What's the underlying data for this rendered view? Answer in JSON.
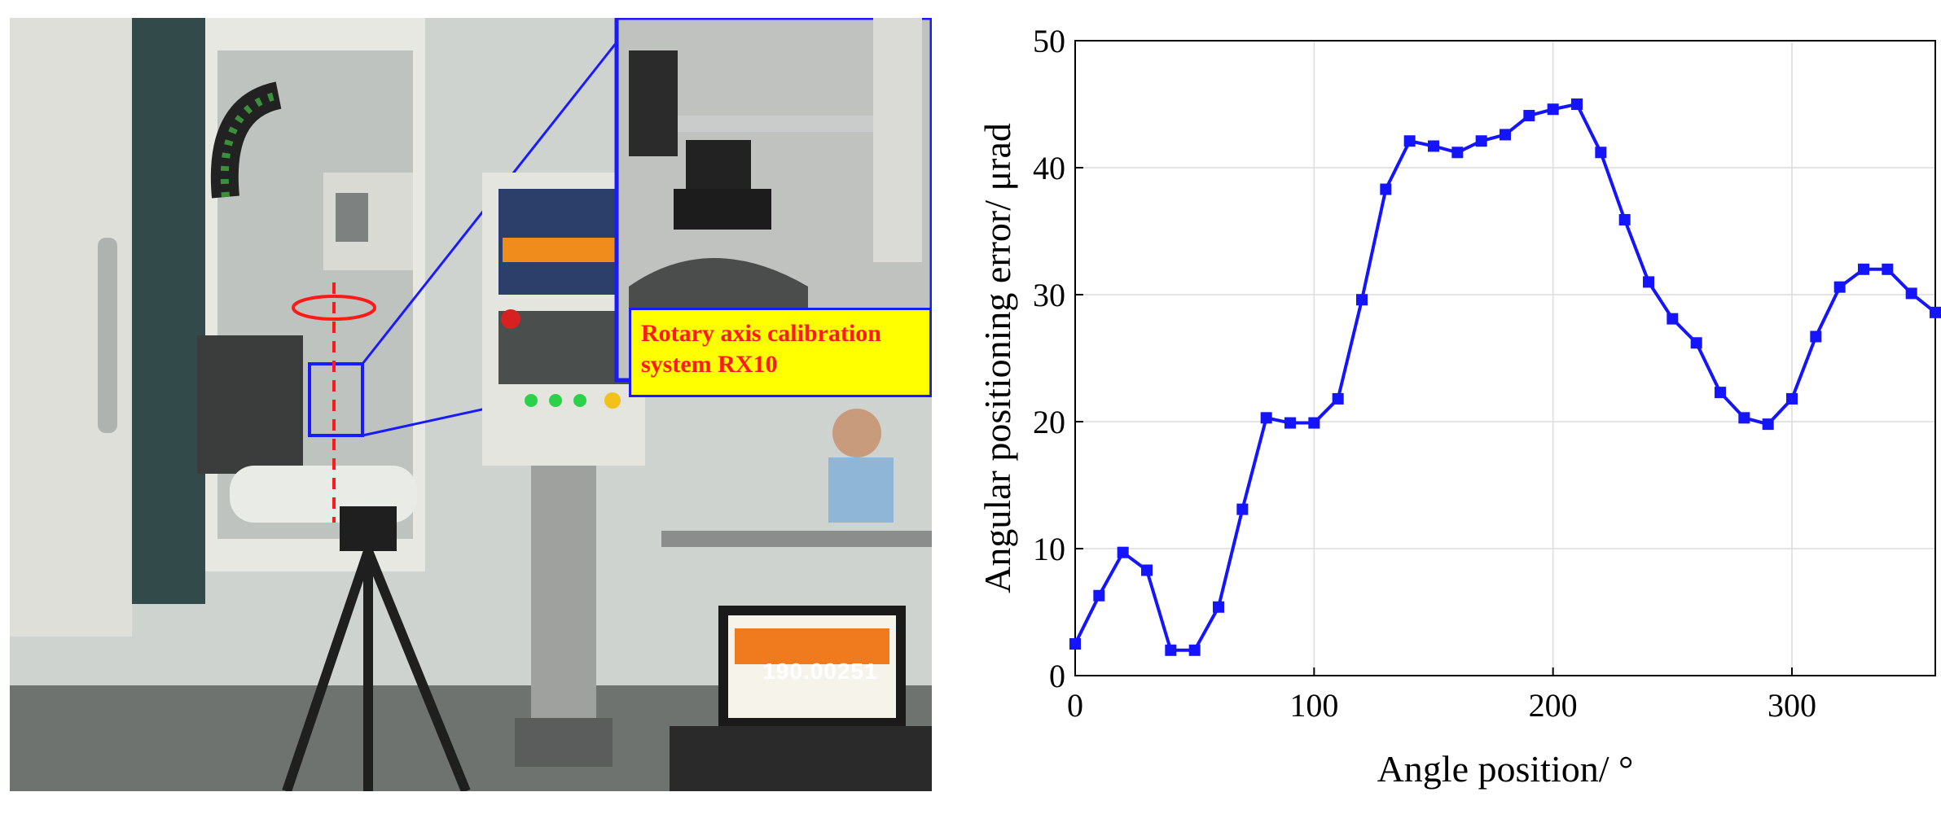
{
  "photo": {
    "callout_lines": [
      "Rotary axis calibration",
      "system RX10"
    ],
    "display_reading": "190.00251"
  },
  "colors": {
    "series": "#1414ff",
    "callout_background": "#ffff00",
    "callout_text": "#ff1a1a",
    "callout_border": "#1a1aff",
    "rotation_arrow": "#ff1a1a"
  },
  "chart_data": {
    "type": "line",
    "title": "",
    "xlabel": "Angle position/ °",
    "ylabel": "Angular positioning error/ μrad",
    "xlim": [
      0,
      360
    ],
    "ylim": [
      0,
      50
    ],
    "xticks": [
      0,
      100,
      200,
      300
    ],
    "yticks": [
      0,
      10,
      20,
      30,
      40,
      50
    ],
    "grid": true,
    "marker": "square",
    "series": [
      {
        "x": [
          0,
          10,
          20,
          30,
          40,
          50,
          60,
          70,
          80,
          90,
          100,
          110,
          120,
          130,
          140,
          150,
          160,
          170,
          180,
          190,
          200,
          210,
          220,
          230,
          240,
          250,
          260,
          270,
          280,
          290,
          300,
          310,
          320,
          330,
          340,
          350,
          360
        ],
        "values": [
          2.5,
          6.3,
          9.7,
          8.3,
          2.0,
          2.0,
          5.4,
          13.1,
          20.3,
          19.9,
          19.9,
          21.8,
          29.6,
          38.3,
          42.1,
          41.7,
          41.2,
          42.1,
          42.6,
          44.1,
          44.6,
          45.0,
          41.2,
          35.9,
          31.0,
          28.1,
          26.2,
          22.3,
          20.3,
          19.8,
          21.8,
          26.7,
          30.6,
          32.0,
          32.0,
          30.1,
          28.6
        ]
      }
    ]
  }
}
